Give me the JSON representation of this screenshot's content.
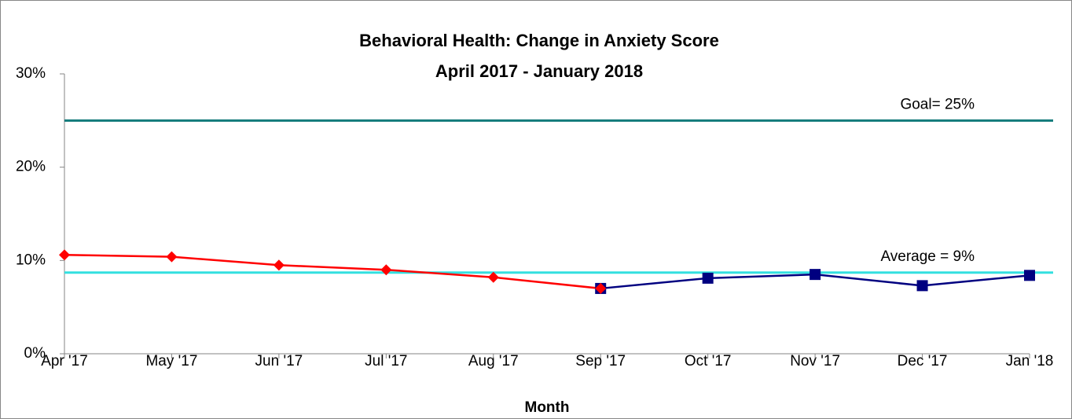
{
  "chart_data": {
    "type": "line",
    "title": "Behavioral Health: Change in Anxiety Score",
    "subtitle": "April 2017 - January 2018",
    "x_label": "Month",
    "categories": [
      "Apr '17",
      "May '17",
      "Jun '17",
      "Jul '17",
      "Aug '17",
      "Sep '17",
      "Oct '17",
      "Nov '17",
      "Dec '17",
      "Jan '18"
    ],
    "series": [
      {
        "color": "#000080",
        "marker": "square",
        "values": [
          null,
          null,
          null,
          null,
          null,
          7.0,
          8.1,
          8.5,
          7.3,
          8.4
        ]
      },
      {
        "color": "#ff0000",
        "marker": "diamond",
        "values": [
          10.6,
          10.4,
          9.5,
          9.0,
          8.2,
          7.0,
          null,
          null,
          null,
          null
        ]
      }
    ],
    "reference_lines": [
      {
        "label": "Goal= 25%",
        "value": 25,
        "color": "#127b7b"
      },
      {
        "label": "Average = 9%",
        "value": 8.7,
        "color": "#33e0e0"
      }
    ],
    "ylim": [
      0,
      30
    ],
    "yticks": [
      {
        "value": 0,
        "label": "0%"
      },
      {
        "value": 10,
        "label": "10%"
      },
      {
        "value": 20,
        "label": "20%"
      },
      {
        "value": 30,
        "label": "30%"
      }
    ],
    "grid": false
  }
}
